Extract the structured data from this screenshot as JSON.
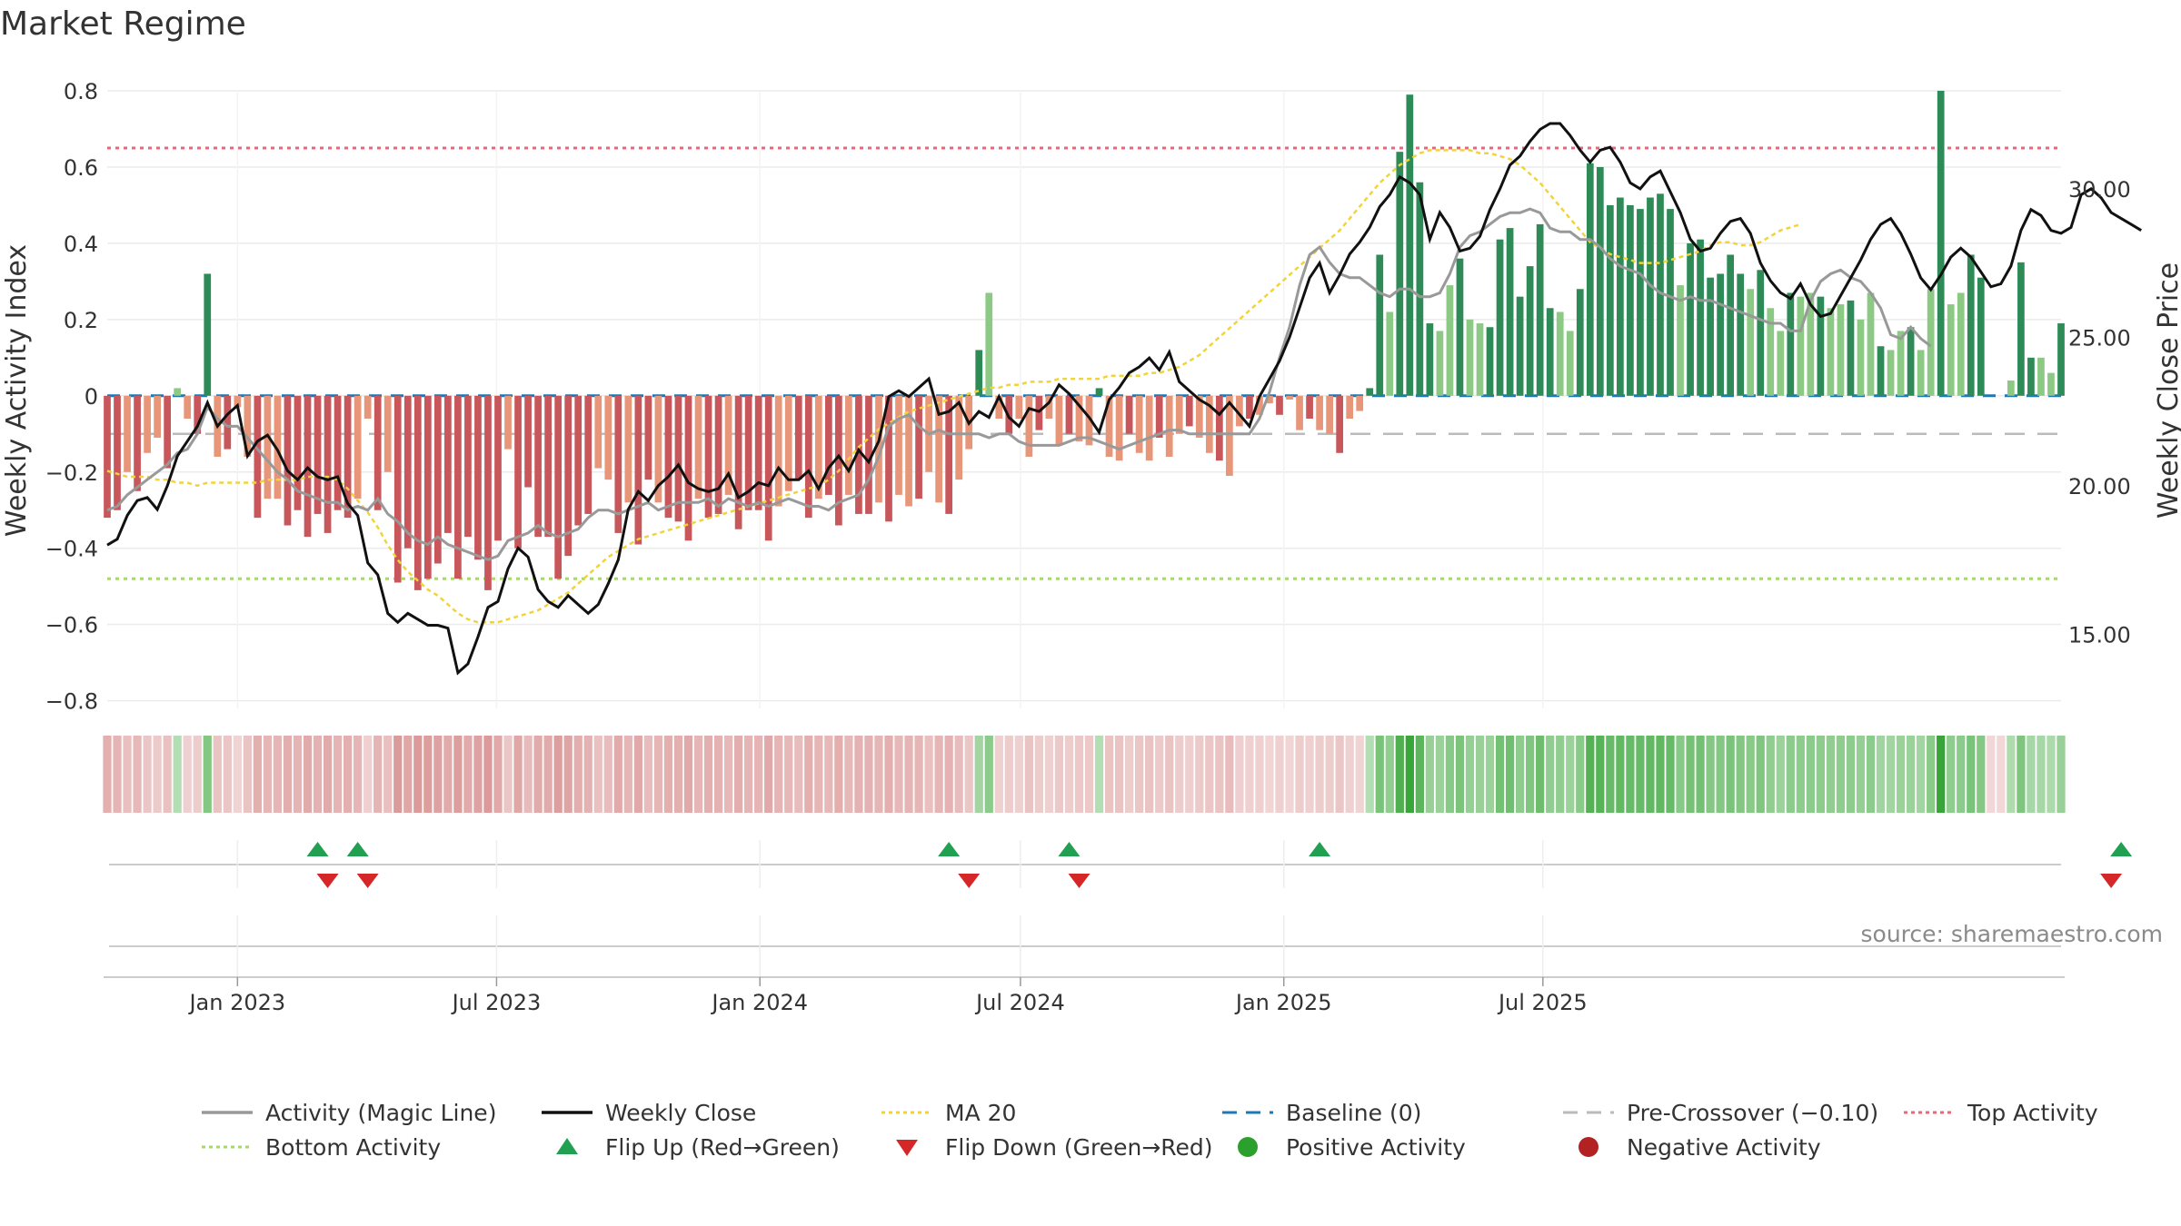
{
  "title": "Market Regime",
  "source": "source: sharemaestro.com",
  "colors": {
    "bar_neg_dark": "#c8575b",
    "bar_neg_light": "#e8967a",
    "bar_pos_dark": "#2e8b57",
    "bar_pos_light": "#8cc984",
    "magic": "#999999",
    "close": "#111111",
    "ma20": "#f0d43a",
    "baseline": "#1f77b4",
    "precross": "#bbbbbb",
    "top": "#e8677a",
    "bottom": "#a8d86a",
    "flip_up": "#20a050",
    "flip_down": "#d62728",
    "pos_dot": "#2ca02c",
    "neg_dot": "#b22222"
  },
  "chart_data": {
    "type": "bar",
    "ylabel": "Weekly Activity Index",
    "y2label": "Weekly Close Price",
    "ylim": [
      -0.82,
      0.8
    ],
    "y_ticks": [
      {
        "v": 0.8,
        "label": "0.8"
      },
      {
        "v": 0.6,
        "label": "0.6"
      },
      {
        "v": 0.4,
        "label": "0.4"
      },
      {
        "v": 0.2,
        "label": "0.2"
      },
      {
        "v": 0,
        "label": "0"
      },
      {
        "v": -0.2,
        "label": "−0.2"
      },
      {
        "v": -0.4,
        "label": "−0.4"
      },
      {
        "v": -0.6,
        "label": "−0.6"
      },
      {
        "v": -0.8,
        "label": "−0.8"
      }
    ],
    "y2lim": [
      12.5,
      33.3
    ],
    "y2_ticks": [
      {
        "v": 30,
        "label": "30.00"
      },
      {
        "v": 25,
        "label": "25.00"
      },
      {
        "v": 20,
        "label": "20.00"
      },
      {
        "v": 15,
        "label": "15.00"
      }
    ],
    "x_ticks": [
      {
        "date": "2023-01-01",
        "label": "Jan 2023"
      },
      {
        "date": "2023-07-01",
        "label": "Jul 2023"
      },
      {
        "date": "2024-01-01",
        "label": "Jan 2024"
      },
      {
        "date": "2024-07-01",
        "label": "Jul 2024"
      },
      {
        "date": "2025-01-01",
        "label": "Jan 2025"
      },
      {
        "date": "2025-07-01",
        "label": "Jul 2025"
      }
    ],
    "start_date": "2022-10-02",
    "activity": [
      -0.32,
      -0.3,
      -0.2,
      -0.25,
      -0.15,
      -0.11,
      -0.19,
      0.02,
      -0.06,
      -0.1,
      0.32,
      -0.16,
      -0.14,
      -0.03,
      -0.16,
      -0.32,
      -0.27,
      -0.27,
      -0.34,
      -0.3,
      -0.37,
      -0.31,
      -0.36,
      -0.3,
      -0.32,
      -0.27,
      -0.06,
      -0.3,
      -0.2,
      -0.49,
      -0.4,
      -0.51,
      -0.48,
      -0.44,
      -0.36,
      -0.48,
      -0.37,
      -0.43,
      -0.51,
      -0.38,
      -0.14,
      -0.4,
      -0.24,
      -0.37,
      -0.37,
      -0.48,
      -0.42,
      -0.34,
      -0.31,
      -0.19,
      -0.22,
      -0.36,
      -0.28,
      -0.39,
      -0.22,
      -0.28,
      -0.32,
      -0.33,
      -0.38,
      -0.27,
      -0.32,
      -0.31,
      -0.26,
      -0.35,
      -0.3,
      -0.3,
      -0.38,
      -0.29,
      -0.25,
      -0.22,
      -0.32,
      -0.27,
      -0.26,
      -0.34,
      -0.26,
      -0.31,
      -0.31,
      -0.28,
      -0.33,
      -0.26,
      -0.29,
      -0.27,
      -0.2,
      -0.28,
      -0.31,
      -0.22,
      -0.14,
      0.12,
      0.27,
      -0.06,
      -0.1,
      -0.06,
      -0.16,
      -0.09,
      -0.06,
      -0.13,
      -0.1,
      -0.12,
      -0.13,
      0.02,
      -0.16,
      -0.17,
      -0.1,
      -0.15,
      -0.17,
      -0.11,
      -0.16,
      -0.1,
      -0.08,
      -0.11,
      -0.15,
      -0.17,
      -0.21,
      -0.08,
      -0.06,
      -0.05,
      -0.02,
      -0.05,
      -0.01,
      -0.09,
      -0.06,
      -0.09,
      -0.1,
      -0.15,
      -0.06,
      -0.04,
      0.02,
      0.37,
      0.22,
      0.64,
      0.79,
      0.56,
      0.19,
      0.17,
      0.29,
      0.36,
      0.2,
      0.19,
      0.18,
      0.41,
      0.44,
      0.26,
      0.34,
      0.45,
      0.23,
      0.22,
      0.17,
      0.28,
      0.61,
      0.6,
      0.5,
      0.52,
      0.5,
      0.49,
      0.52,
      0.53,
      0.49,
      0.29,
      0.4,
      0.41,
      0.31,
      0.32,
      0.37,
      0.32,
      0.28,
      0.33,
      0.23,
      0.17,
      0.27,
      0.26,
      0.27,
      0.26,
      0.23,
      0.24,
      0.25,
      0.2,
      0.27,
      0.13,
      0.12,
      0.17,
      0.18,
      0.12,
      0.28,
      0.8,
      0.24,
      0.27,
      0.37,
      0.31,
      0.0,
      0.0,
      0.04,
      0.35,
      0.1,
      0.1,
      0.06,
      0.19
    ],
    "magic": [
      -0.3,
      -0.29,
      -0.26,
      -0.24,
      -0.22,
      -0.2,
      -0.18,
      -0.15,
      -0.14,
      -0.1,
      -0.03,
      -0.06,
      -0.08,
      -0.08,
      -0.11,
      -0.14,
      -0.17,
      -0.2,
      -0.22,
      -0.25,
      -0.26,
      -0.27,
      -0.28,
      -0.28,
      -0.3,
      -0.29,
      -0.3,
      -0.27,
      -0.31,
      -0.33,
      -0.36,
      -0.38,
      -0.39,
      -0.37,
      -0.39,
      -0.4,
      -0.41,
      -0.42,
      -0.43,
      -0.42,
      -0.38,
      -0.37,
      -0.36,
      -0.34,
      -0.36,
      -0.37,
      -0.36,
      -0.35,
      -0.32,
      -0.3,
      -0.3,
      -0.31,
      -0.3,
      -0.29,
      -0.28,
      -0.3,
      -0.29,
      -0.28,
      -0.28,
      -0.28,
      -0.27,
      -0.29,
      -0.27,
      -0.28,
      -0.29,
      -0.28,
      -0.29,
      -0.28,
      -0.27,
      -0.28,
      -0.29,
      -0.29,
      -0.3,
      -0.28,
      -0.27,
      -0.26,
      -0.22,
      -0.16,
      -0.08,
      -0.06,
      -0.05,
      -0.08,
      -0.1,
      -0.09,
      -0.1,
      -0.1,
      -0.1,
      -0.1,
      -0.11,
      -0.1,
      -0.1,
      -0.12,
      -0.13,
      -0.13,
      -0.13,
      -0.13,
      -0.12,
      -0.11,
      -0.11,
      -0.12,
      -0.13,
      -0.14,
      -0.13,
      -0.12,
      -0.11,
      -0.1,
      -0.09,
      -0.09,
      -0.1,
      -0.1,
      -0.1,
      -0.1,
      -0.1,
      -0.1,
      -0.1,
      -0.06,
      0.01,
      0.1,
      0.18,
      0.29,
      0.37,
      0.39,
      0.35,
      0.32,
      0.31,
      0.31,
      0.29,
      0.27,
      0.26,
      0.28,
      0.28,
      0.26,
      0.26,
      0.27,
      0.32,
      0.39,
      0.42,
      0.43,
      0.45,
      0.47,
      0.48,
      0.48,
      0.49,
      0.48,
      0.44,
      0.43,
      0.43,
      0.41,
      0.41,
      0.39,
      0.36,
      0.34,
      0.33,
      0.32,
      0.29,
      0.27,
      0.26,
      0.25,
      0.26,
      0.25,
      0.25,
      0.24,
      0.23,
      0.22,
      0.21,
      0.2,
      0.19,
      0.19,
      0.17,
      0.17,
      0.25,
      0.3,
      0.32,
      0.33,
      0.31,
      0.3,
      0.27,
      0.23,
      0.16,
      0.15,
      0.18,
      0.15,
      0.13
    ],
    "close": [
      18.0,
      18.2,
      19.0,
      19.5,
      19.6,
      19.2,
      20.0,
      21.0,
      21.5,
      22.0,
      22.8,
      22.0,
      22.4,
      22.7,
      21.0,
      21.5,
      21.7,
      21.2,
      20.5,
      20.2,
      20.6,
      20.3,
      20.2,
      20.3,
      19.4,
      19.0,
      17.4,
      17.0,
      15.7,
      15.4,
      15.7,
      15.5,
      15.3,
      15.3,
      15.2,
      13.7,
      14.0,
      14.9,
      15.9,
      16.1,
      17.2,
      17.9,
      17.6,
      16.5,
      16.1,
      15.9,
      16.3,
      16.0,
      15.7,
      16.0,
      16.7,
      17.5,
      19.2,
      19.8,
      19.5,
      20.0,
      20.3,
      20.7,
      20.1,
      19.9,
      19.8,
      19.9,
      20.4,
      19.6,
      19.8,
      20.1,
      20.0,
      20.6,
      20.2,
      20.2,
      20.5,
      19.9,
      20.6,
      21.0,
      20.5,
      21.2,
      20.8,
      21.5,
      23.0,
      23.2,
      23.0,
      23.3,
      23.6,
      22.4,
      22.5,
      22.8,
      22.1,
      22.5,
      22.3,
      23.0,
      22.3,
      22.0,
      22.6,
      22.5,
      22.8,
      23.4,
      23.1,
      22.7,
      22.3,
      21.8,
      22.9,
      23.3,
      23.8,
      24.0,
      24.3,
      23.9,
      24.5,
      23.5,
      23.2,
      22.9,
      22.7,
      22.4,
      22.8,
      22.4,
      22.0,
      23.0,
      23.6,
      24.2,
      25.0,
      26.0,
      27.0,
      27.5,
      26.5,
      27.1,
      27.8,
      28.2,
      28.7,
      29.4,
      29.8,
      30.4,
      30.2,
      29.8,
      28.3,
      29.2,
      28.7,
      27.9,
      28.0,
      28.4,
      29.3,
      30.0,
      30.8,
      31.1,
      31.6,
      32.0,
      32.2,
      32.2,
      31.8,
      31.3,
      30.9,
      31.3,
      31.4,
      30.9,
      30.2,
      30.0,
      30.4,
      30.6,
      29.9,
      29.2,
      28.3,
      27.9,
      28.0,
      28.5,
      28.9,
      29.0,
      28.5,
      27.5,
      26.9,
      26.5,
      26.3,
      26.8,
      26.1,
      25.7,
      25.8,
      26.4,
      27.0,
      27.6,
      28.3,
      28.8,
      29.0,
      28.5,
      27.8,
      27.0,
      26.6,
      27.1,
      27.7,
      28.0,
      27.7,
      27.2,
      26.7,
      26.8,
      27.4,
      28.6,
      29.3,
      29.1,
      28.6,
      28.5,
      28.7,
      29.8,
      30.0,
      29.7,
      29.2,
      29.0,
      28.8,
      28.6
    ],
    "ma20": [
      20.5,
      20.4,
      20.3,
      20.3,
      20.3,
      20.2,
      20.2,
      20.1,
      20.1,
      20.0,
      20.1,
      20.1,
      20.1,
      20.1,
      20.1,
      20.1,
      20.2,
      20.2,
      20.2,
      20.2,
      20.3,
      20.3,
      20.3,
      20.2,
      19.9,
      19.5,
      19.1,
      18.6,
      18.0,
      17.5,
      17.1,
      16.8,
      16.5,
      16.3,
      16.0,
      15.7,
      15.5,
      15.4,
      15.4,
      15.4,
      15.5,
      15.6,
      15.7,
      15.8,
      16.0,
      16.2,
      16.4,
      16.7,
      17.0,
      17.3,
      17.6,
      17.8,
      18.0,
      18.2,
      18.3,
      18.4,
      18.5,
      18.6,
      18.7,
      18.8,
      18.9,
      19.0,
      19.1,
      19.2,
      19.3,
      19.4,
      19.5,
      19.6,
      19.7,
      19.8,
      19.9,
      20.0,
      20.2,
      20.5,
      20.9,
      21.3,
      21.6,
      21.9,
      22.1,
      22.3,
      22.5,
      22.6,
      22.7,
      22.8,
      22.9,
      23.0,
      23.1,
      23.2,
      23.3,
      23.3,
      23.4,
      23.4,
      23.5,
      23.5,
      23.5,
      23.6,
      23.6,
      23.6,
      23.6,
      23.6,
      23.7,
      23.7,
      23.7,
      23.7,
      23.8,
      23.8,
      23.9,
      24.0,
      24.2,
      24.4,
      24.7,
      25.0,
      25.3,
      25.6,
      25.9,
      26.2,
      26.5,
      26.8,
      27.1,
      27.4,
      27.7,
      28.0,
      28.3,
      28.6,
      29.0,
      29.4,
      29.8,
      30.2,
      30.5,
      30.8,
      31.0,
      31.2,
      31.3,
      31.3,
      31.3,
      31.3,
      31.3,
      31.2,
      31.2,
      31.1,
      31.0,
      30.8,
      30.5,
      30.2,
      29.8,
      29.4,
      29.0,
      28.6,
      28.2,
      28.0,
      27.8,
      27.7,
      27.6,
      27.5,
      27.5,
      27.5,
      27.6,
      27.7,
      27.8,
      27.9,
      28.1,
      28.2,
      28.2,
      28.1,
      28.1,
      28.2,
      28.4,
      28.6,
      28.7,
      28.8
    ],
    "top_line": 0.65,
    "bottom_line": -0.48,
    "precross_line": -0.1,
    "baseline_line": 0,
    "flips_up": [
      21,
      25,
      84,
      96,
      121,
      201
    ],
    "flips_down": [
      22,
      26,
      86,
      97,
      200
    ]
  },
  "legend": [
    {
      "label": "Activity (Magic Line)",
      "kind": "line",
      "color": "#999999"
    },
    {
      "label": "Weekly Close",
      "kind": "line",
      "color": "#111111"
    },
    {
      "label": "MA 20",
      "kind": "dotted",
      "color": "#f0d43a"
    },
    {
      "label": "Baseline (0)",
      "kind": "dashed",
      "color": "#1f77b4"
    },
    {
      "label": "Pre-Crossover (−0.10)",
      "kind": "dashed",
      "color": "#bbbbbb"
    },
    {
      "label": "Top Activity",
      "kind": "dotted",
      "color": "#e8677a"
    },
    {
      "label": "Bottom Activity",
      "kind": "dotted",
      "color": "#a8d86a"
    },
    {
      "label": "Flip Up (Red→Green)",
      "kind": "tri-up",
      "color": "#20a050"
    },
    {
      "label": "Flip Down (Green→Red)",
      "kind": "tri-down",
      "color": "#d62728"
    },
    {
      "label": "Positive Activity",
      "kind": "dot",
      "color": "#2ca02c"
    },
    {
      "label": "Negative Activity",
      "kind": "dot",
      "color": "#b22222"
    }
  ]
}
